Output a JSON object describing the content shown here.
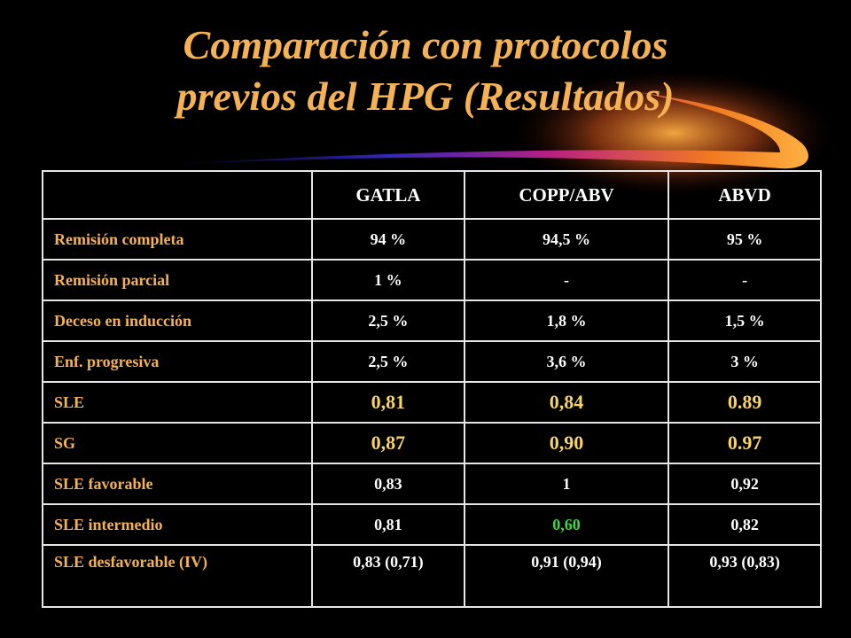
{
  "title": {
    "line1": "Comparación con protocolos",
    "line2": "previos del HPG (Resultados)"
  },
  "colors": {
    "background": "#000000",
    "title": "#f5b254",
    "row_label": "#f5b254",
    "cell_text": "#ffffff",
    "highlight_big": "#f5d46a",
    "highlight_green": "#3cd93c",
    "border": "#e6e6e6"
  },
  "table": {
    "corner": "",
    "columns": [
      "GATLA",
      "COPP/ABV",
      "ABVD"
    ],
    "rows": [
      {
        "label": "Remisión completa",
        "values": [
          "94 %",
          "94,5 %",
          "95 %"
        ]
      },
      {
        "label": "Remisión parcial",
        "values": [
          "1 %",
          "-",
          "-"
        ]
      },
      {
        "label": "Deceso en inducción",
        "values": [
          "2,5 %",
          "1,8 %",
          "1,5 %"
        ]
      },
      {
        "label": "Enf. progresiva",
        "values": [
          "2,5 %",
          "3,6 %",
          "3 %"
        ]
      },
      {
        "label": "SLE",
        "values": [
          "0,81",
          "0,84",
          "0.89"
        ]
      },
      {
        "label": "SG",
        "values": [
          "0,87",
          "0,90",
          "0.97"
        ]
      },
      {
        "label": "SLE favorable",
        "values": [
          "0,83",
          "1",
          "0,92"
        ]
      },
      {
        "label": "SLE intermedio",
        "values": [
          "0,81",
          "0,60",
          "0,82"
        ]
      },
      {
        "label": "SLE desfavorable (IV)",
        "values": [
          "0,83 (0,71)",
          "0,91 (0,94)",
          "0,93 (0,83)"
        ]
      }
    ]
  }
}
